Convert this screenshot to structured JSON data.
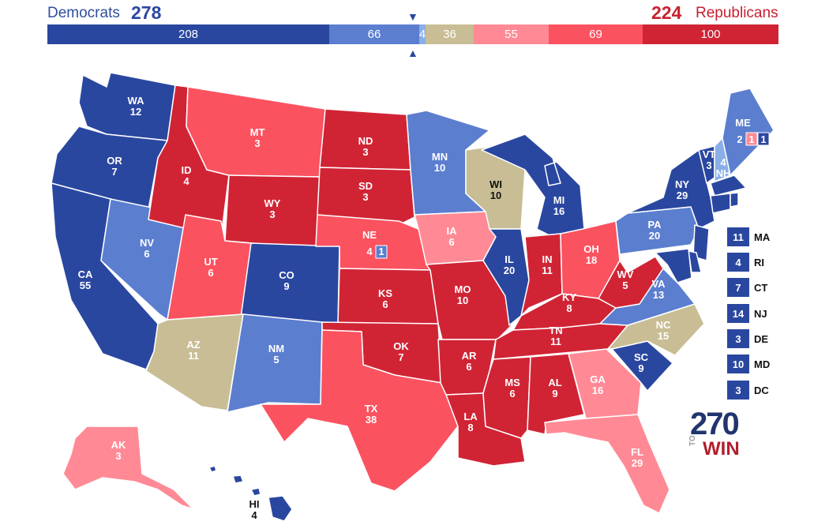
{
  "header": {
    "dem_label": "Democrats",
    "dem_total": "278",
    "rep_total": "224",
    "rep_label": "Republicans"
  },
  "bar": [
    {
      "label": "208",
      "value": 208,
      "color": "#2a47a0"
    },
    {
      "label": "66",
      "value": 66,
      "color": "#5b7ecf"
    },
    {
      "label": "4",
      "value": 4,
      "color": "#8aaee8"
    },
    {
      "label": "36",
      "value": 36,
      "color": "#c8bd94"
    },
    {
      "label": "55",
      "value": 55,
      "color": "#ff8a95"
    },
    {
      "label": "69",
      "value": 69,
      "color": "#fb5260"
    },
    {
      "label": "100",
      "value": 100,
      "color": "#d02435"
    }
  ],
  "colors": {
    "safe_d": "#2a47a0",
    "likely_d": "#5b7ecf",
    "lean_d": "#8aaee8",
    "tossup": "#c8bd94",
    "lean_r": "#ff8a95",
    "likely_r": "#fb5260",
    "safe_r": "#d02435"
  },
  "states": {
    "WA": {
      "abbr": "WA",
      "ev": "12"
    },
    "OR": {
      "abbr": "OR",
      "ev": "7"
    },
    "CA": {
      "abbr": "CA",
      "ev": "55"
    },
    "NV": {
      "abbr": "NV",
      "ev": "6"
    },
    "ID": {
      "abbr": "ID",
      "ev": "4"
    },
    "MT": {
      "abbr": "MT",
      "ev": "3"
    },
    "WY": {
      "abbr": "WY",
      "ev": "3"
    },
    "UT": {
      "abbr": "UT",
      "ev": "6"
    },
    "CO": {
      "abbr": "CO",
      "ev": "9"
    },
    "AZ": {
      "abbr": "AZ",
      "ev": "11"
    },
    "NM": {
      "abbr": "NM",
      "ev": "5"
    },
    "ND": {
      "abbr": "ND",
      "ev": "3"
    },
    "SD": {
      "abbr": "SD",
      "ev": "3"
    },
    "NE": {
      "abbr": "NE",
      "ev": "4",
      "ev2": "1"
    },
    "KS": {
      "abbr": "KS",
      "ev": "6"
    },
    "OK": {
      "abbr": "OK",
      "ev": "7"
    },
    "TX": {
      "abbr": "TX",
      "ev": "38"
    },
    "MN": {
      "abbr": "MN",
      "ev": "10"
    },
    "IA": {
      "abbr": "IA",
      "ev": "6"
    },
    "MO": {
      "abbr": "MO",
      "ev": "10"
    },
    "AR": {
      "abbr": "AR",
      "ev": "6"
    },
    "LA": {
      "abbr": "LA",
      "ev": "8"
    },
    "WI": {
      "abbr": "WI",
      "ev": "10"
    },
    "IL": {
      "abbr": "IL",
      "ev": "20"
    },
    "MI": {
      "abbr": "MI",
      "ev": "16"
    },
    "IN": {
      "abbr": "IN",
      "ev": "11"
    },
    "OH": {
      "abbr": "OH",
      "ev": "18"
    },
    "KY": {
      "abbr": "KY",
      "ev": "8"
    },
    "TN": {
      "abbr": "TN",
      "ev": "11"
    },
    "MS": {
      "abbr": "MS",
      "ev": "6"
    },
    "AL": {
      "abbr": "AL",
      "ev": "9"
    },
    "GA": {
      "abbr": "GA",
      "ev": "16"
    },
    "FL": {
      "abbr": "FL",
      "ev": "29"
    },
    "SC": {
      "abbr": "SC",
      "ev": "9"
    },
    "NC": {
      "abbr": "NC",
      "ev": "15"
    },
    "VA": {
      "abbr": "VA",
      "ev": "13"
    },
    "WV": {
      "abbr": "WV",
      "ev": "5"
    },
    "PA": {
      "abbr": "PA",
      "ev": "20"
    },
    "NY": {
      "abbr": "NY",
      "ev": "29"
    },
    "VT": {
      "abbr": "VT",
      "ev": "3"
    },
    "NH": {
      "abbr": "NH",
      "ev": "4"
    },
    "ME": {
      "abbr": "ME",
      "ev": "2",
      "ev2": "1",
      "ev3": "1"
    },
    "AK": {
      "abbr": "AK",
      "ev": "3"
    },
    "HI": {
      "abbr": "HI",
      "ev": "4"
    }
  },
  "small_states": [
    {
      "ev": "11",
      "abbr": "MA"
    },
    {
      "ev": "4",
      "abbr": "RI"
    },
    {
      "ev": "7",
      "abbr": "CT"
    },
    {
      "ev": "14",
      "abbr": "NJ"
    },
    {
      "ev": "3",
      "abbr": "DE"
    },
    {
      "ev": "10",
      "abbr": "MD"
    },
    {
      "ev": "3",
      "abbr": "DC"
    }
  ],
  "logo": {
    "number": "270",
    "to": "TO",
    "win": "WIN"
  }
}
